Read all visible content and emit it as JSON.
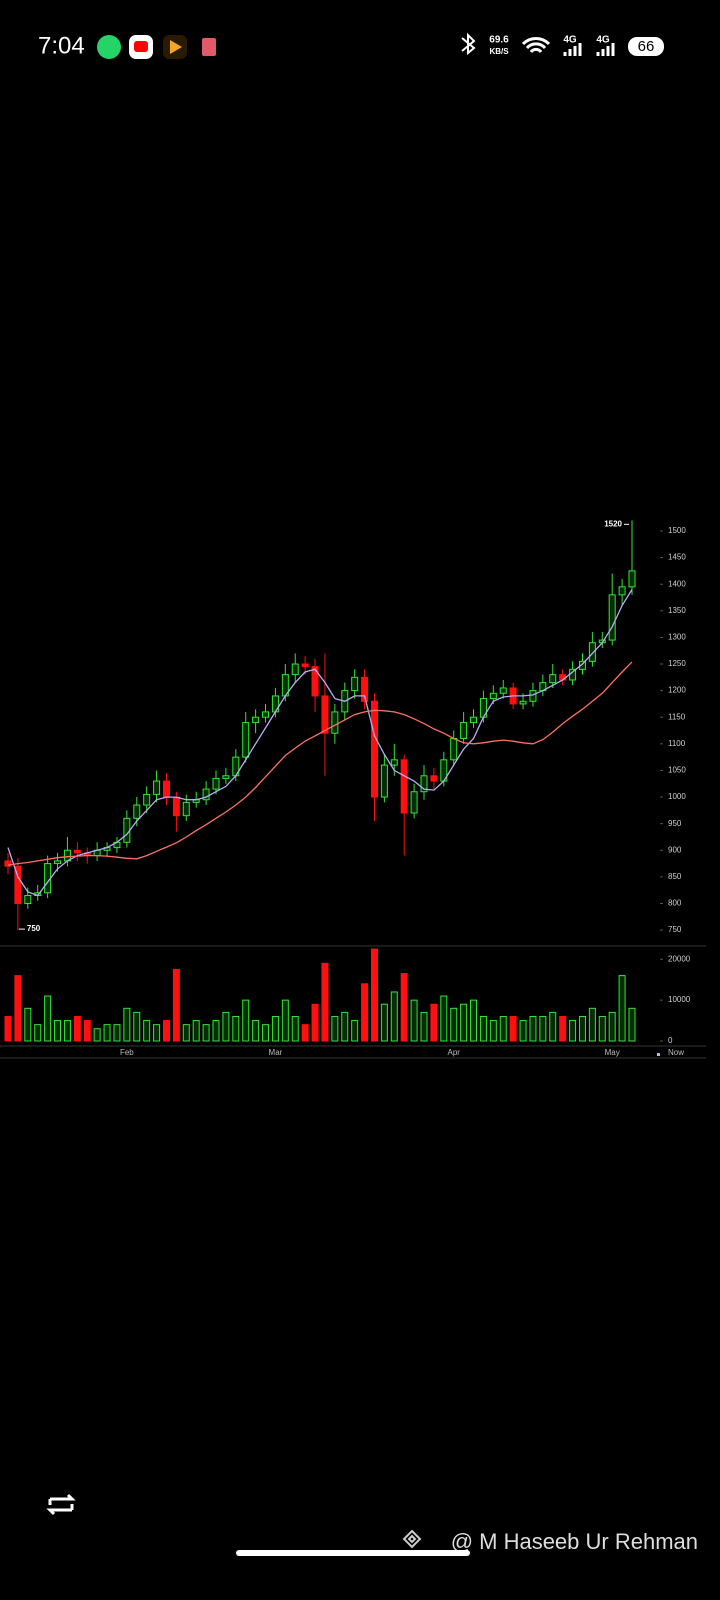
{
  "status_bar": {
    "time": "7:04",
    "speed": "69.6",
    "speed_unit": "KB/S",
    "net1": "4G",
    "net2": "4G",
    "battery": "66"
  },
  "watermark": "@ M Haseeb Ur Rehman",
  "chart_data": {
    "type": "candlestick",
    "categories": [
      null,
      null,
      null,
      null,
      null,
      null,
      null,
      null,
      null,
      null,
      null,
      null,
      "Feb",
      null,
      null,
      null,
      null,
      null,
      null,
      null,
      null,
      null,
      null,
      null,
      null,
      null,
      null,
      "Mar",
      null,
      null,
      null,
      null,
      null,
      null,
      null,
      null,
      null,
      null,
      null,
      null,
      null,
      null,
      null,
      null,
      null,
      "Apr",
      null,
      null,
      null,
      null,
      null,
      null,
      null,
      null,
      null,
      null,
      null,
      null,
      null,
      null,
      null,
      "May",
      null,
      null
    ],
    "now_label": "Now",
    "open": [
      880,
      870,
      800,
      815,
      820,
      875,
      880,
      900,
      895,
      890,
      900,
      905,
      915,
      960,
      985,
      1005,
      1030,
      1000,
      965,
      990,
      995,
      1015,
      1035,
      1040,
      1075,
      1140,
      1150,
      1160,
      1190,
      1230,
      1250,
      1245,
      1190,
      1120,
      1160,
      1200,
      1225,
      1180,
      1000,
      1060,
      1070,
      970,
      1010,
      1040,
      1030,
      1070,
      1110,
      1140,
      1150,
      1185,
      1195,
      1205,
      1175,
      1180,
      1200,
      1215,
      1230,
      1220,
      1240,
      1255,
      1290,
      1295,
      1380,
      1395
    ],
    "high": [
      895,
      885,
      830,
      835,
      890,
      895,
      925,
      915,
      905,
      915,
      915,
      925,
      975,
      1000,
      1020,
      1050,
      1045,
      1010,
      1005,
      1010,
      1030,
      1050,
      1055,
      1090,
      1160,
      1165,
      1175,
      1205,
      1250,
      1270,
      1265,
      1260,
      1270,
      1175,
      1215,
      1240,
      1240,
      1195,
      1080,
      1100,
      1080,
      1025,
      1060,
      1055,
      1085,
      1125,
      1160,
      1165,
      1200,
      1210,
      1220,
      1215,
      1195,
      1215,
      1230,
      1250,
      1240,
      1255,
      1270,
      1310,
      1310,
      1420,
      1410,
      1520
    ],
    "low": [
      855,
      750,
      790,
      805,
      810,
      860,
      870,
      880,
      875,
      880,
      890,
      895,
      905,
      945,
      970,
      990,
      985,
      935,
      955,
      980,
      985,
      1005,
      1025,
      1030,
      1065,
      1120,
      1140,
      1150,
      1180,
      1215,
      1230,
      1160,
      1040,
      1100,
      1145,
      1185,
      1165,
      955,
      990,
      1040,
      890,
      960,
      995,
      1015,
      1020,
      1060,
      1100,
      1130,
      1140,
      1175,
      1185,
      1165,
      1165,
      1170,
      1190,
      1205,
      1210,
      1210,
      1230,
      1245,
      1280,
      1285,
      1360,
      1380
    ],
    "close": [
      870,
      800,
      815,
      820,
      875,
      880,
      900,
      895,
      890,
      900,
      905,
      915,
      960,
      985,
      1005,
      1030,
      1000,
      965,
      990,
      995,
      1015,
      1035,
      1040,
      1075,
      1140,
      1150,
      1160,
      1190,
      1230,
      1250,
      1245,
      1190,
      1120,
      1160,
      1200,
      1225,
      1180,
      1000,
      1060,
      1070,
      970,
      1010,
      1040,
      1030,
      1070,
      1110,
      1140,
      1150,
      1185,
      1195,
      1205,
      1175,
      1180,
      1200,
      1215,
      1230,
      1220,
      1240,
      1255,
      1290,
      1295,
      1380,
      1395,
      1425
    ],
    "up_color": "#33e633",
    "down_color": "#ff1010",
    "series": [
      {
        "color": "#b4b0f4",
        "values": [
          905,
          850,
          822,
          815,
          840,
          865,
          880,
          890,
          895,
          900,
          905,
          915,
          930,
          955,
          975,
          995,
          1000,
          1000,
          995,
          995,
          1000,
          1010,
          1020,
          1040,
          1070,
          1100,
          1130,
          1160,
          1190,
          1215,
          1235,
          1240,
          1215,
          1185,
          1180,
          1190,
          1190,
          1115,
          1080,
          1050,
          1040,
          1030,
          1015,
          1013,
          1030,
          1060,
          1090,
          1110,
          1150,
          1180,
          1188,
          1190,
          1190,
          1192,
          1200,
          1210,
          1220,
          1235,
          1250,
          1270,
          1290,
          1320,
          1360,
          1390
        ]
      },
      {
        "color": "#ff7062",
        "values": [
          872,
          875,
          877,
          880,
          883,
          886,
          888,
          889,
          890,
          890,
          889,
          887,
          885,
          884,
          890,
          898,
          906,
          914,
          925,
          937,
          948,
          960,
          972,
          985,
          1000,
          1018,
          1038,
          1058,
          1078,
          1092,
          1105,
          1115,
          1125,
          1135,
          1145,
          1155,
          1160,
          1163,
          1162,
          1160,
          1155,
          1147,
          1138,
          1128,
          1120,
          1110,
          1102,
          1100,
          1102,
          1105,
          1107,
          1105,
          1102,
          1100,
          1108,
          1122,
          1138,
          1152,
          1165,
          1180,
          1195,
          1215,
          1235,
          1254
        ]
      }
    ],
    "ylim": [
      722,
      1530
    ],
    "yticks": [
      750,
      800,
      850,
      900,
      950,
      1000,
      1050,
      1100,
      1150,
      1200,
      1250,
      1300,
      1350,
      1400,
      1450,
      1500
    ],
    "volume": [
      6000,
      16000,
      8000,
      4000,
      11000,
      5000,
      5000,
      6000,
      5000,
      3000,
      4000,
      4000,
      8000,
      7000,
      5000,
      4000,
      5000,
      17500,
      4000,
      5000,
      4000,
      5000,
      7000,
      6000,
      10000,
      5000,
      4000,
      6000,
      10000,
      6000,
      4000,
      9000,
      19000,
      6000,
      7000,
      5000,
      14000,
      22500,
      9000,
      12000,
      16500,
      10000,
      7000,
      9000,
      11000,
      8000,
      9000,
      10000,
      6000,
      5000,
      6000,
      6000,
      5000,
      6000,
      6000,
      7000,
      6000,
      5000,
      6000,
      8000,
      6000,
      7000,
      16000,
      8000
    ],
    "volume_ylim": [
      0,
      23000
    ],
    "volume_yticks": [
      0,
      10000,
      20000
    ]
  }
}
